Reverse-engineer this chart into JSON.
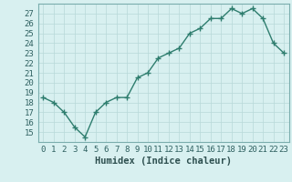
{
  "title": "",
  "xlabel": "Humidex (Indice chaleur)",
  "x": [
    0,
    1,
    2,
    3,
    4,
    5,
    6,
    7,
    8,
    9,
    10,
    11,
    12,
    13,
    14,
    15,
    16,
    17,
    18,
    19,
    20,
    21,
    22,
    23
  ],
  "y": [
    18.5,
    18.0,
    17.0,
    15.5,
    14.5,
    17.0,
    18.0,
    18.5,
    18.5,
    20.5,
    21.0,
    22.5,
    23.0,
    23.5,
    25.0,
    25.5,
    26.5,
    26.5,
    27.5,
    27.0,
    27.5,
    26.5,
    24.0,
    23.0
  ],
  "line_color": "#2e7d6e",
  "marker": "+",
  "marker_size": 4,
  "marker_lw": 1.0,
  "bg_color": "#d8f0f0",
  "grid_color": "#b8d8d8",
  "ylim": [
    14,
    28
  ],
  "xlim": [
    -0.5,
    23.5
  ],
  "yticks": [
    15,
    16,
    17,
    18,
    19,
    20,
    21,
    22,
    23,
    24,
    25,
    26,
    27
  ],
  "xticks": [
    0,
    1,
    2,
    3,
    4,
    5,
    6,
    7,
    8,
    9,
    10,
    11,
    12,
    13,
    14,
    15,
    16,
    17,
    18,
    19,
    20,
    21,
    22,
    23
  ],
  "tick_fontsize": 6.5,
  "xlabel_fontsize": 7.5,
  "line_width": 1.0
}
